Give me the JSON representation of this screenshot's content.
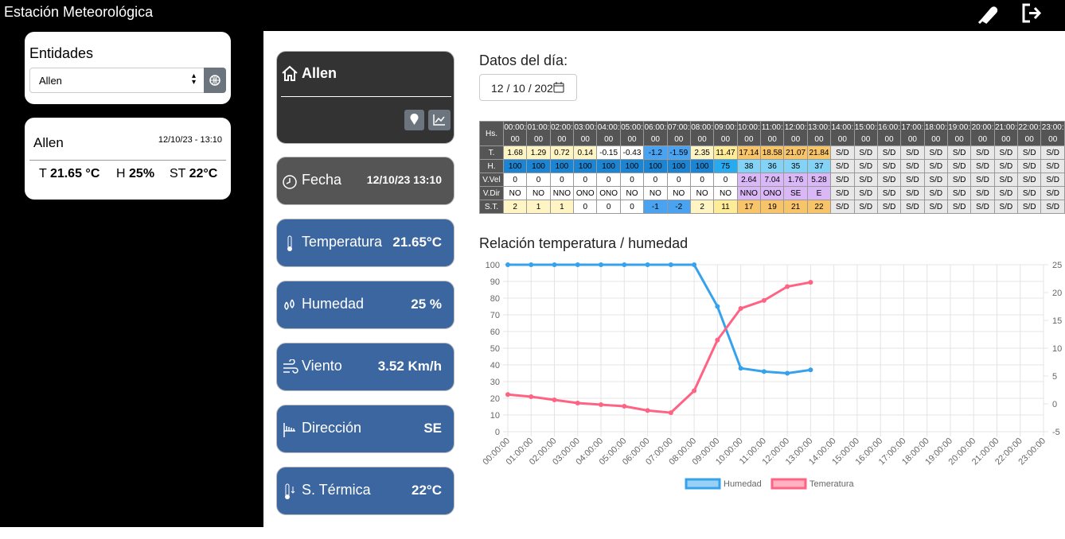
{
  "header": {
    "title": "Estación Meteorológica"
  },
  "sidebar": {
    "entities_title": "Entidades",
    "select_value": "Allen",
    "card": {
      "name": "Allen",
      "datetime": "12/10/23 - 13:10",
      "t_label": "T",
      "t_value": "21.65 °C",
      "h_label": "H",
      "h_value": "25%",
      "st_label": "ST",
      "st_value": "22°C"
    }
  },
  "cards": {
    "station": "Allen",
    "items": [
      {
        "label": "Fecha",
        "value": "12/10/23 13:10"
      },
      {
        "label": "Temperatura",
        "value": "21.65°C"
      },
      {
        "label": "Humedad",
        "value": "25 %"
      },
      {
        "label": "Viento",
        "value": "3.52 Km/h"
      },
      {
        "label": "Dirección",
        "value": "SE"
      },
      {
        "label": "S. Térmica",
        "value": "22°C"
      }
    ]
  },
  "daily": {
    "title": "Datos del día:",
    "date": "12 / 10 / 202",
    "table": {
      "corner": "Hs.",
      "hours": [
        "00:00:00",
        "01:00:00",
        "02:00:00",
        "03:00:00",
        "04:00:00",
        "05:00:00",
        "06:00:00",
        "07:00:00",
        "08:00:00",
        "09:00:00",
        "10:00:00",
        "11:00:00",
        "12:00:00",
        "13:00:00",
        "14:00:00",
        "15:00:00",
        "16:00:00",
        "17:00:00",
        "18:00:00",
        "19:00:00",
        "20:00:00",
        "21:00:00",
        "22:00:00",
        "23:00:00"
      ],
      "rows": [
        {
          "label": "T.",
          "cells": [
            "1.68",
            "1.29",
            "0.72",
            "0.14",
            "-0.15",
            "-0.43",
            "-1.2",
            "-1.59",
            "2.35",
            "11.47",
            "17.14",
            "18.58",
            "21.07",
            "21.84",
            "S/D",
            "S/D",
            "S/D",
            "S/D",
            "S/D",
            "S/D",
            "S/D",
            "S/D",
            "S/D",
            "S/D"
          ]
        },
        {
          "label": "H.",
          "cells": [
            "100",
            "100",
            "100",
            "100",
            "100",
            "100",
            "100",
            "100",
            "100",
            "75",
            "38",
            "36",
            "35",
            "37",
            "S/D",
            "S/D",
            "S/D",
            "S/D",
            "S/D",
            "S/D",
            "S/D",
            "S/D",
            "S/D",
            "S/D"
          ]
        },
        {
          "label": "V.Vel",
          "cells": [
            "0",
            "0",
            "0",
            "0",
            "0",
            "0",
            "0",
            "0",
            "0",
            "0",
            "2.64",
            "7.04",
            "1.76",
            "5.28",
            "S/D",
            "S/D",
            "S/D",
            "S/D",
            "S/D",
            "S/D",
            "S/D",
            "S/D",
            "S/D",
            "S/D"
          ]
        },
        {
          "label": "V.Dir",
          "cells": [
            "NO",
            "NO",
            "NNO",
            "ONO",
            "ONO",
            "NO",
            "NO",
            "NO",
            "NO",
            "NO",
            "NNO",
            "ONO",
            "SE",
            "E",
            "S/D",
            "S/D",
            "S/D",
            "S/D",
            "S/D",
            "S/D",
            "S/D",
            "S/D",
            "S/D",
            "S/D"
          ]
        },
        {
          "label": "S.T.",
          "cells": [
            "2",
            "1",
            "1",
            "0",
            "0",
            "0",
            "-1",
            "-2",
            "2",
            "11",
            "17",
            "19",
            "21",
            "22",
            "S/D",
            "S/D",
            "S/D",
            "S/D",
            "S/D",
            "S/D",
            "S/D",
            "S/D",
            "S/D",
            "S/D"
          ]
        }
      ]
    }
  },
  "chart_data": {
    "type": "line",
    "title": "Relación temperatura / humedad",
    "categories": [
      "00:00:00",
      "01:00:00",
      "02:00:00",
      "03:00:00",
      "04:00:00",
      "05:00:00",
      "06:00:00",
      "07:00:00",
      "08:00:00",
      "09:00:00",
      "10:00:00",
      "11:00:00",
      "12:00:00",
      "13:00:00",
      "14:00:00",
      "15:00:00",
      "16:00:00",
      "17:00:00",
      "18:00:00",
      "19:00:00",
      "20:00:00",
      "21:00:00",
      "22:00:00",
      "23:00:00"
    ],
    "series": [
      {
        "name": "Humedad",
        "color": "#36a2eb",
        "values": [
          100,
          100,
          100,
          100,
          100,
          100,
          100,
          100,
          100,
          75,
          38,
          36,
          35,
          37,
          null,
          null,
          null,
          null,
          null,
          null,
          null,
          null,
          null,
          null
        ]
      },
      {
        "name": "Temeratura",
        "color": "#ff6384",
        "axis": "y2",
        "values": [
          1.68,
          1.29,
          0.72,
          0.14,
          -0.15,
          -0.43,
          -1.2,
          -1.59,
          2.35,
          11.47,
          17.14,
          18.58,
          21.07,
          21.84,
          null,
          null,
          null,
          null,
          null,
          null,
          null,
          null,
          null,
          null
        ]
      }
    ],
    "ylim": [
      0,
      100
    ],
    "yticks": [
      0,
      10,
      20,
      30,
      40,
      50,
      60,
      70,
      80,
      90,
      100
    ],
    "y2lim": [
      -5,
      25
    ],
    "y2ticks": [
      -5,
      0,
      5,
      10,
      15,
      20,
      25
    ],
    "grid": true,
    "legend": "bottom"
  }
}
